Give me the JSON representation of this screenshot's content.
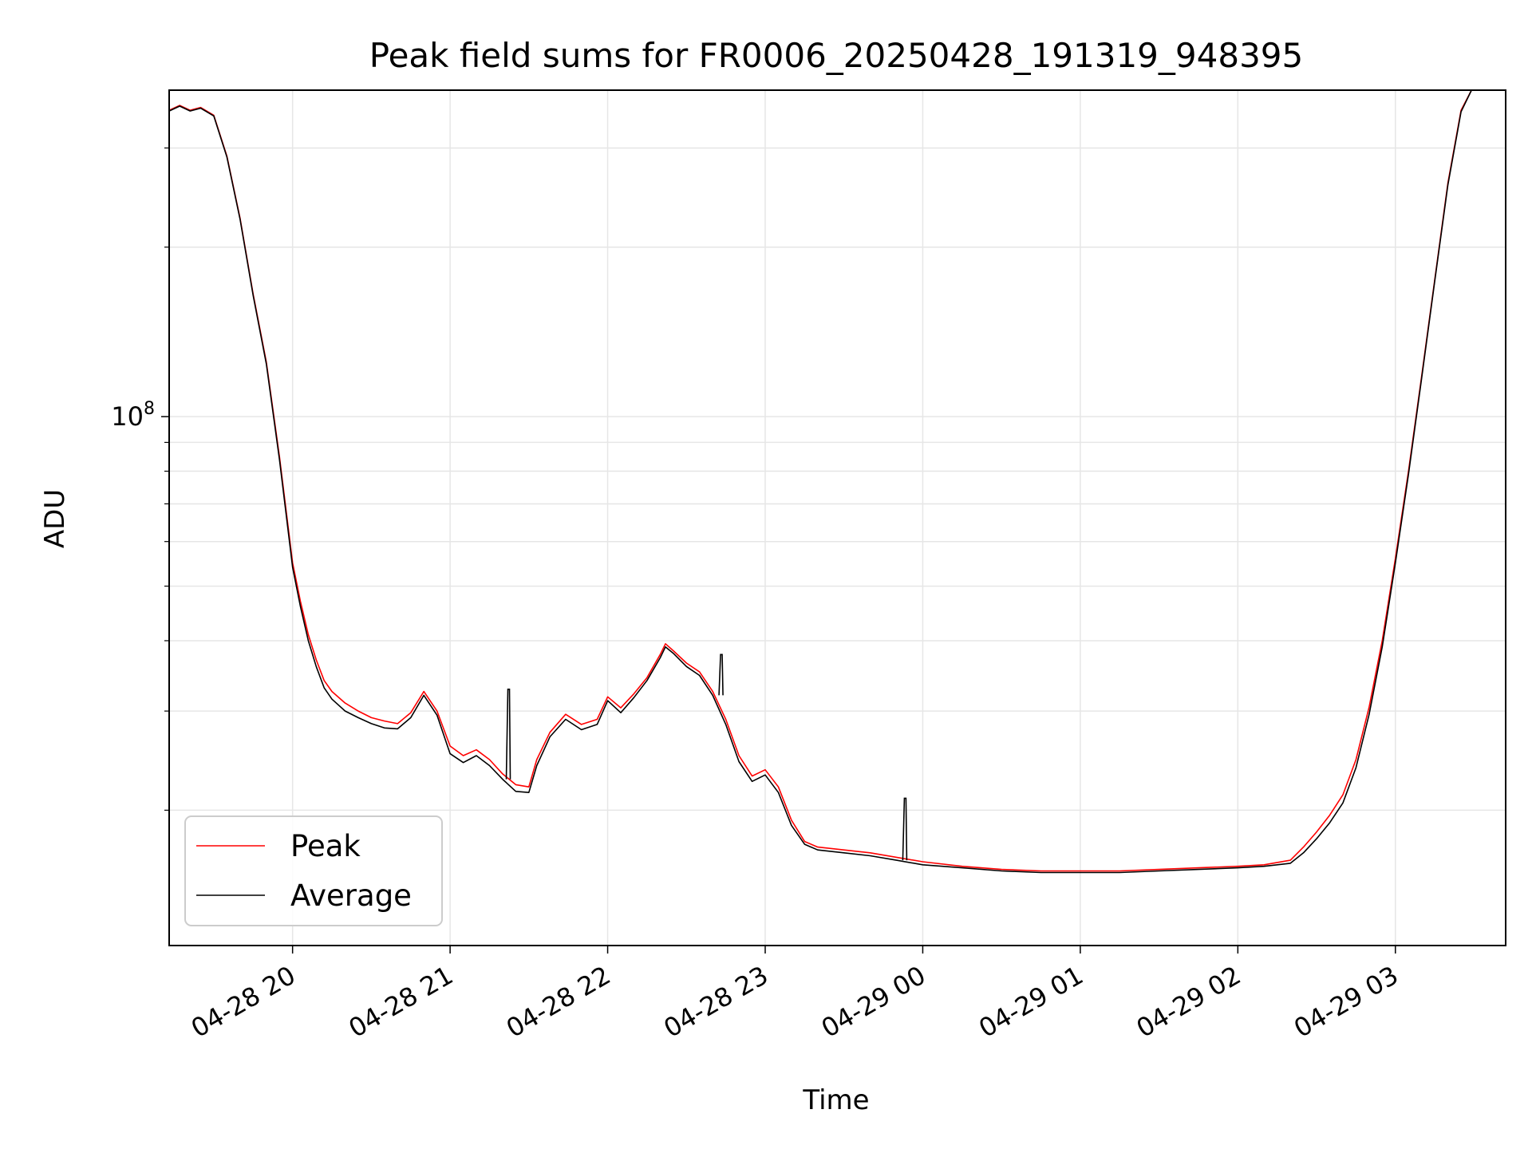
{
  "chart_data": {
    "type": "line",
    "title": "Peak field sums for FR0006_20250428_191319_948395",
    "xlabel": "Time",
    "ylabel": "ADU",
    "y_scale": "log",
    "grid": true,
    "legend_position": "lower-left",
    "xlim": [
      "2025-04-28 19:13",
      "2025-04-29 03:42"
    ],
    "ylim": [
      11500000,
      380000000
    ],
    "x_ticks": [
      {
        "t": "2025-04-28 20:00",
        "label": "04-28 20"
      },
      {
        "t": "2025-04-28 21:00",
        "label": "04-28 21"
      },
      {
        "t": "2025-04-28 22:00",
        "label": "04-28 22"
      },
      {
        "t": "2025-04-28 23:00",
        "label": "04-28 23"
      },
      {
        "t": "2025-04-29 00:00",
        "label": "04-29 00"
      },
      {
        "t": "2025-04-29 01:00",
        "label": "04-29 01"
      },
      {
        "t": "2025-04-29 02:00",
        "label": "04-29 02"
      },
      {
        "t": "2025-04-29 03:00",
        "label": "04-29 03"
      }
    ],
    "y_major_ticks": [
      {
        "value": 100000000,
        "base": "10",
        "exp": "8"
      }
    ],
    "series": [
      {
        "name": "Peak",
        "color": "#ff0000",
        "points": [
          [
            "2025-04-28 19:13",
            350000000
          ],
          [
            "2025-04-28 19:17",
            357000000
          ],
          [
            "2025-04-28 19:21",
            350000000
          ],
          [
            "2025-04-28 19:25",
            354000000
          ],
          [
            "2025-04-28 19:30",
            343000000
          ],
          [
            "2025-04-28 19:35",
            290000000
          ],
          [
            "2025-04-28 19:40",
            225000000
          ],
          [
            "2025-04-28 19:45",
            165000000
          ],
          [
            "2025-04-28 19:50",
            125000000
          ],
          [
            "2025-04-28 19:55",
            85000000
          ],
          [
            "2025-04-28 20:00",
            55000000
          ],
          [
            "2025-04-28 20:03",
            47000000
          ],
          [
            "2025-04-28 20:06",
            41000000
          ],
          [
            "2025-04-28 20:09",
            37000000
          ],
          [
            "2025-04-28 20:12",
            34000000
          ],
          [
            "2025-04-28 20:15",
            32500000
          ],
          [
            "2025-04-28 20:20",
            31000000
          ],
          [
            "2025-04-28 20:25",
            30000000
          ],
          [
            "2025-04-28 20:30",
            29200000
          ],
          [
            "2025-04-28 20:35",
            28800000
          ],
          [
            "2025-04-28 20:40",
            28500000
          ],
          [
            "2025-04-28 20:45",
            29800000
          ],
          [
            "2025-04-28 20:50",
            32500000
          ],
          [
            "2025-04-28 20:55",
            30000000
          ],
          [
            "2025-04-28 21:00",
            26000000
          ],
          [
            "2025-04-28 21:05",
            25000000
          ],
          [
            "2025-04-28 21:10",
            25600000
          ],
          [
            "2025-04-28 21:15",
            24600000
          ],
          [
            "2025-04-28 21:20",
            23200000
          ],
          [
            "2025-04-28 21:25",
            22200000
          ],
          [
            "2025-04-28 21:30",
            22000000
          ],
          [
            "2025-04-28 21:33",
            24600000
          ],
          [
            "2025-04-28 21:38",
            27500000
          ],
          [
            "2025-04-28 21:44",
            29600000
          ],
          [
            "2025-04-28 21:50",
            28400000
          ],
          [
            "2025-04-28 21:56",
            29000000
          ],
          [
            "2025-04-28 22:00",
            31800000
          ],
          [
            "2025-04-28 22:05",
            30400000
          ],
          [
            "2025-04-28 22:10",
            32200000
          ],
          [
            "2025-04-28 22:15",
            34400000
          ],
          [
            "2025-04-28 22:20",
            37800000
          ],
          [
            "2025-04-28 22:22",
            39500000
          ],
          [
            "2025-04-28 22:25",
            38400000
          ],
          [
            "2025-04-28 22:30",
            36500000
          ],
          [
            "2025-04-28 22:35",
            35200000
          ],
          [
            "2025-04-28 22:40",
            32500000
          ],
          [
            "2025-04-28 22:45",
            29000000
          ],
          [
            "2025-04-28 22:50",
            25000000
          ],
          [
            "2025-04-28 22:55",
            23000000
          ],
          [
            "2025-04-28 23:00",
            23600000
          ],
          [
            "2025-04-28 23:05",
            22000000
          ],
          [
            "2025-04-28 23:10",
            19200000
          ],
          [
            "2025-04-28 23:15",
            17600000
          ],
          [
            "2025-04-28 23:20",
            17200000
          ],
          [
            "2025-04-28 23:30",
            17000000
          ],
          [
            "2025-04-28 23:40",
            16800000
          ],
          [
            "2025-04-28 23:50",
            16500000
          ],
          [
            "2025-04-29 00:00",
            16200000
          ],
          [
            "2025-04-29 00:15",
            15900000
          ],
          [
            "2025-04-29 00:30",
            15700000
          ],
          [
            "2025-04-29 00:45",
            15600000
          ],
          [
            "2025-04-29 01:00",
            15600000
          ],
          [
            "2025-04-29 01:15",
            15600000
          ],
          [
            "2025-04-29 01:30",
            15700000
          ],
          [
            "2025-04-29 01:45",
            15800000
          ],
          [
            "2025-04-29 02:00",
            15900000
          ],
          [
            "2025-04-29 02:10",
            16000000
          ],
          [
            "2025-04-29 02:20",
            16300000
          ],
          [
            "2025-04-29 02:25",
            17200000
          ],
          [
            "2025-04-29 02:30",
            18300000
          ],
          [
            "2025-04-29 02:35",
            19600000
          ],
          [
            "2025-04-29 02:40",
            21300000
          ],
          [
            "2025-04-29 02:45",
            24600000
          ],
          [
            "2025-04-29 02:50",
            30500000
          ],
          [
            "2025-04-29 02:55",
            40000000
          ],
          [
            "2025-04-29 03:00",
            56000000
          ],
          [
            "2025-04-29 03:05",
            80000000
          ],
          [
            "2025-04-29 03:10",
            118000000
          ],
          [
            "2025-04-29 03:15",
            175000000
          ],
          [
            "2025-04-29 03:20",
            260000000
          ],
          [
            "2025-04-29 03:25",
            350000000
          ],
          [
            "2025-04-29 03:29",
            380000000
          ]
        ]
      },
      {
        "name": "Average",
        "color": "#000000",
        "points": [
          [
            "2025-04-28 19:13",
            349000000
          ],
          [
            "2025-04-28 19:17",
            356000000
          ],
          [
            "2025-04-28 19:21",
            349000000
          ],
          [
            "2025-04-28 19:25",
            353000000
          ],
          [
            "2025-04-28 19:30",
            342000000
          ],
          [
            "2025-04-28 19:35",
            289000000
          ],
          [
            "2025-04-28 19:40",
            224000000
          ],
          [
            "2025-04-28 19:45",
            164000000
          ],
          [
            "2025-04-28 19:50",
            124000000
          ],
          [
            "2025-04-28 19:55",
            84000000
          ],
          [
            "2025-04-28 20:00",
            54000000
          ],
          [
            "2025-04-28 20:03",
            46000000
          ],
          [
            "2025-04-28 20:06",
            40000000
          ],
          [
            "2025-04-28 20:09",
            36000000
          ],
          [
            "2025-04-28 20:12",
            33000000
          ],
          [
            "2025-04-28 20:15",
            31500000
          ],
          [
            "2025-04-28 20:20",
            30000000
          ],
          [
            "2025-04-28 20:25",
            29200000
          ],
          [
            "2025-04-28 20:30",
            28500000
          ],
          [
            "2025-04-28 20:35",
            28000000
          ],
          [
            "2025-04-28 20:40",
            27900000
          ],
          [
            "2025-04-28 20:45",
            29200000
          ],
          [
            "2025-04-28 20:50",
            32000000
          ],
          [
            "2025-04-28 20:55",
            29500000
          ],
          [
            "2025-04-28 21:00",
            25200000
          ],
          [
            "2025-04-28 21:05",
            24300000
          ],
          [
            "2025-04-28 21:10",
            25000000
          ],
          [
            "2025-04-28 21:15",
            24000000
          ],
          [
            "2025-04-28 21:20",
            22700000
          ],
          [
            "2025-04-28 21:25",
            21600000
          ],
          [
            "2025-04-28 21:30",
            21500000
          ],
          [
            "2025-04-28 21:33",
            24000000
          ],
          [
            "2025-04-28 21:38",
            27000000
          ],
          [
            "2025-04-28 21:44",
            29000000
          ],
          [
            "2025-04-28 21:50",
            27800000
          ],
          [
            "2025-04-28 21:56",
            28400000
          ],
          [
            "2025-04-28 22:00",
            31300000
          ],
          [
            "2025-04-28 22:05",
            29800000
          ],
          [
            "2025-04-28 22:10",
            31700000
          ],
          [
            "2025-04-28 22:15",
            34000000
          ],
          [
            "2025-04-28 22:20",
            37300000
          ],
          [
            "2025-04-28 22:22",
            39000000
          ],
          [
            "2025-04-28 22:25",
            38000000
          ],
          [
            "2025-04-28 22:30",
            36000000
          ],
          [
            "2025-04-28 22:35",
            34700000
          ],
          [
            "2025-04-28 22:40",
            32000000
          ],
          [
            "2025-04-28 22:45",
            28400000
          ],
          [
            "2025-04-28 22:50",
            24400000
          ],
          [
            "2025-04-28 22:55",
            22500000
          ],
          [
            "2025-04-28 23:00",
            23100000
          ],
          [
            "2025-04-28 23:05",
            21500000
          ],
          [
            "2025-04-28 23:10",
            18800000
          ],
          [
            "2025-04-28 23:15",
            17400000
          ],
          [
            "2025-04-28 23:20",
            17000000
          ],
          [
            "2025-04-28 23:30",
            16800000
          ],
          [
            "2025-04-28 23:40",
            16600000
          ],
          [
            "2025-04-28 23:50",
            16300000
          ],
          [
            "2025-04-29 00:00",
            16000000
          ],
          [
            "2025-04-29 00:15",
            15800000
          ],
          [
            "2025-04-29 00:30",
            15600000
          ],
          [
            "2025-04-29 00:45",
            15500000
          ],
          [
            "2025-04-29 01:00",
            15500000
          ],
          [
            "2025-04-29 01:15",
            15500000
          ],
          [
            "2025-04-29 01:30",
            15600000
          ],
          [
            "2025-04-29 01:45",
            15700000
          ],
          [
            "2025-04-29 02:00",
            15800000
          ],
          [
            "2025-04-29 02:10",
            15900000
          ],
          [
            "2025-04-29 02:20",
            16100000
          ],
          [
            "2025-04-29 02:25",
            16800000
          ],
          [
            "2025-04-29 02:30",
            17800000
          ],
          [
            "2025-04-29 02:35",
            19000000
          ],
          [
            "2025-04-29 02:40",
            20600000
          ],
          [
            "2025-04-29 02:45",
            23800000
          ],
          [
            "2025-04-29 02:50",
            29600000
          ],
          [
            "2025-04-29 02:55",
            39000000
          ],
          [
            "2025-04-29 03:00",
            55000000
          ],
          [
            "2025-04-29 03:05",
            79000000
          ],
          [
            "2025-04-29 03:10",
            117000000
          ],
          [
            "2025-04-29 03:15",
            174000000
          ],
          [
            "2025-04-29 03:20",
            258000000
          ],
          [
            "2025-04-29 03:25",
            348000000
          ],
          [
            "2025-04-29 03:29",
            380000000
          ]
        ]
      }
    ],
    "annotations": [
      {
        "type": "spike",
        "series": "Average",
        "t": "2025-04-28 21:22",
        "value": 32800000
      },
      {
        "type": "spike",
        "series": "Average",
        "t": "2025-04-28 22:43",
        "value": 37800000
      },
      {
        "type": "spike",
        "series": "Average",
        "t": "2025-04-28 23:53",
        "value": 21000000
      }
    ]
  }
}
